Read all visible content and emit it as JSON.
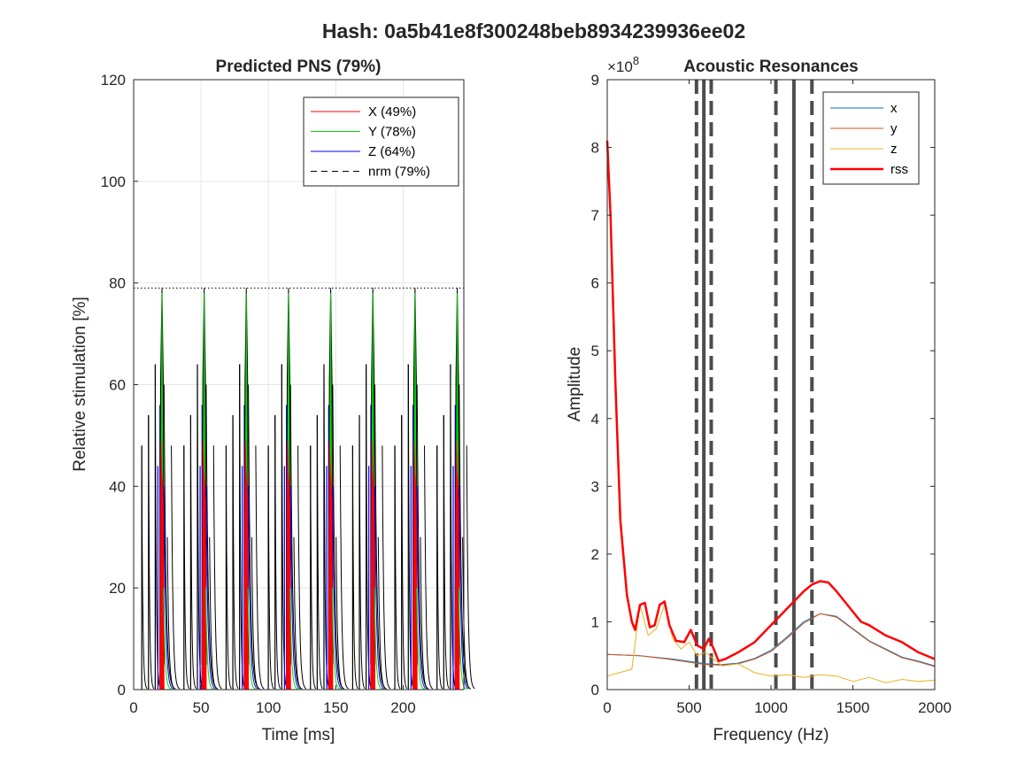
{
  "figure_title": "Hash: 0a5b41e8f300248beb8934239936ee02",
  "chart_data": [
    {
      "type": "line",
      "title": "Predicted PNS (79%)",
      "xlabel": "Time [ms]",
      "ylabel": "Relative stimulation [%]",
      "xlim": [
        0,
        245
      ],
      "ylim": [
        0,
        120
      ],
      "xticks": [
        "0",
        "50",
        "100",
        "150",
        "200"
      ],
      "yticks": [
        "0",
        "20",
        "40",
        "60",
        "80",
        "100",
        "120"
      ],
      "grid": true,
      "legend_position": "top-right",
      "threshold_line": 79,
      "pulse_train": {
        "period_ms": 31.3,
        "first_peak_ms": 21,
        "num_peaks": 8,
        "peak_nrm": 79,
        "peak_y": 78,
        "peak_z": 64,
        "peak_x": 49
      },
      "series": [
        {
          "name": "X (49%)",
          "color": "#ff0000",
          "style": "solid",
          "peak": 49
        },
        {
          "name": "Y (78%)",
          "color": "#00dd00",
          "style": "solid",
          "peak": 78
        },
        {
          "name": "Z (64%)",
          "color": "#0000ff",
          "style": "solid",
          "peak": 64
        },
        {
          "name": "nrm (79%)",
          "color": "#000000",
          "style": "dashed",
          "peak": 79
        }
      ]
    },
    {
      "type": "line",
      "title": "Acoustic Resonances",
      "xlabel": "Frequency (Hz)",
      "ylabel": "Amplitude",
      "y_exponent_label": "×10^8",
      "y_multiplier": 100000000,
      "xlim": [
        0,
        2000
      ],
      "ylim": [
        0,
        9
      ],
      "xticks": [
        "0",
        "500",
        "1000",
        "1500",
        "2000"
      ],
      "yticks": [
        "0",
        "1",
        "2",
        "3",
        "4",
        "5",
        "6",
        "7",
        "8",
        "9"
      ],
      "grid": false,
      "legend_position": "top-right",
      "resonance_bands": [
        {
          "center": 590,
          "low": 545,
          "high": 635
        },
        {
          "center": 1140,
          "low": 1030,
          "high": 1250
        }
      ],
      "series": [
        {
          "name": "x",
          "color": "#0072bd",
          "x": [
            0,
            200,
            400,
            600,
            700,
            800,
            900,
            1000,
            1100,
            1200,
            1300,
            1400,
            1500,
            1600,
            1700,
            1800,
            1900,
            2000
          ],
          "y": [
            0.52,
            0.5,
            0.45,
            0.38,
            0.37,
            0.39,
            0.46,
            0.58,
            0.78,
            1.0,
            1.12,
            1.08,
            0.9,
            0.72,
            0.6,
            0.48,
            0.42,
            0.35
          ]
        },
        {
          "name": "y",
          "color": "#d95319",
          "x": [
            0,
            200,
            400,
            600,
            700,
            800,
            900,
            1000,
            1100,
            1200,
            1300,
            1400,
            1500,
            1600,
            1700,
            1800,
            1900,
            2000
          ],
          "y": [
            0.52,
            0.5,
            0.44,
            0.37,
            0.36,
            0.38,
            0.45,
            0.56,
            0.76,
            0.98,
            1.12,
            1.07,
            0.89,
            0.71,
            0.59,
            0.47,
            0.41,
            0.34
          ]
        },
        {
          "name": "z",
          "color": "#edb120",
          "x": [
            0,
            150,
            200,
            250,
            300,
            350,
            400,
            450,
            500,
            550,
            600,
            650,
            700,
            800,
            900,
            1000,
            1100,
            1200,
            1300,
            1400,
            1500,
            1600,
            1700,
            1800,
            1900,
            2000
          ],
          "y": [
            0.2,
            0.3,
            1.25,
            0.8,
            0.9,
            1.25,
            0.75,
            0.6,
            0.7,
            0.5,
            0.55,
            0.45,
            0.35,
            0.38,
            0.25,
            0.2,
            0.22,
            0.18,
            0.22,
            0.2,
            0.12,
            0.18,
            0.1,
            0.15,
            0.12,
            0.14
          ]
        },
        {
          "name": "rss",
          "color": "#ff0000",
          "x": [
            0,
            20,
            50,
            80,
            120,
            150,
            170,
            200,
            230,
            260,
            290,
            320,
            350,
            380,
            420,
            470,
            510,
            550,
            590,
            620,
            650,
            680,
            720,
            800,
            900,
            1000,
            1100,
            1200,
            1250,
            1300,
            1350,
            1400,
            1500,
            1550,
            1600,
            1700,
            1800,
            1900,
            2000
          ],
          "y": [
            8.1,
            7.0,
            4.5,
            2.5,
            1.4,
            1.0,
            0.88,
            1.25,
            1.28,
            0.92,
            0.95,
            1.25,
            1.3,
            0.95,
            0.72,
            0.7,
            0.88,
            0.65,
            0.6,
            0.75,
            0.6,
            0.42,
            0.45,
            0.55,
            0.7,
            0.95,
            1.2,
            1.45,
            1.55,
            1.6,
            1.58,
            1.45,
            1.15,
            1.0,
            0.95,
            0.8,
            0.7,
            0.55,
            0.45
          ]
        }
      ]
    }
  ]
}
